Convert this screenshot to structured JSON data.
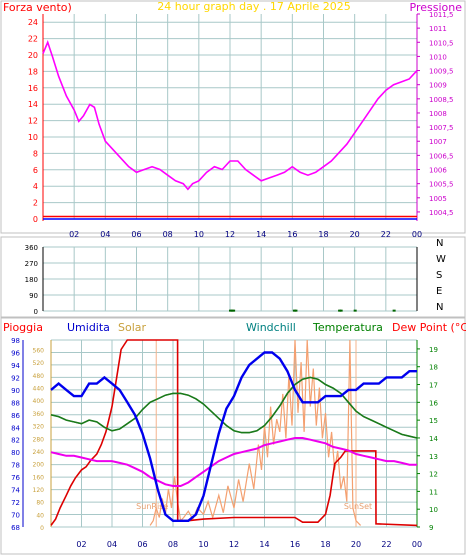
{
  "chart_data": [
    {
      "type": "line",
      "title": "24 hour graph day . 17 Aprile 2025",
      "left_label": "Forza vento)",
      "right_label": "Pressione",
      "x_ticks": [
        "02",
        "04",
        "06",
        "08",
        "10",
        "12",
        "14",
        "16",
        "18",
        "20",
        "22",
        "00"
      ],
      "left_ticks": [
        "0",
        "2",
        "4",
        "6",
        "8",
        "10",
        "12",
        "14",
        "16",
        "18",
        "20",
        "22",
        "24"
      ],
      "right_ticks": [
        "1004,5",
        "1005",
        "1005,5",
        "1006",
        "1006,5",
        "1007",
        "1007,5",
        "1008",
        "1008,5",
        "1009",
        "1009,5",
        "1010",
        "1010,5",
        "1011",
        "1011,5"
      ],
      "ylim_left": [
        0,
        25
      ],
      "ylim_right": [
        1004.25,
        1011.5
      ],
      "grid": true,
      "colors": {
        "pressure": "#ff00ff",
        "wind": "#0000ff",
        "gust": "#ff0000",
        "title": "#ffd700",
        "left_label": "#ff0000",
        "right_label": "#cc00cc"
      },
      "series": [
        {
          "key": "pressure",
          "axis": "right",
          "x": [
            0,
            0.3,
            0.6,
            1,
            1.5,
            2,
            2.3,
            2.6,
            3,
            3.3,
            3.6,
            4,
            4.5,
            5,
            5.5,
            6,
            6.5,
            7,
            7.5,
            8,
            8.5,
            9,
            9.3,
            9.6,
            10,
            10.5,
            11,
            11.5,
            12,
            12.5,
            13,
            13.5,
            14,
            14.5,
            15,
            15.5,
            16,
            16.5,
            17,
            17.5,
            18,
            18.5,
            19,
            19.5,
            20,
            20.5,
            21,
            21.5,
            22,
            22.5,
            23,
            23.5,
            24
          ],
          "values": [
            1010.1,
            1010.5,
            1010.0,
            1009.3,
            1008.6,
            1008.1,
            1007.7,
            1007.9,
            1008.3,
            1008.2,
            1007.6,
            1007.0,
            1006.7,
            1006.4,
            1006.1,
            1005.9,
            1006.0,
            1006.1,
            1006.0,
            1005.8,
            1005.6,
            1005.5,
            1005.3,
            1005.5,
            1005.6,
            1005.9,
            1006.1,
            1006.0,
            1006.3,
            1006.3,
            1006.0,
            1005.8,
            1005.6,
            1005.7,
            1005.8,
            1005.9,
            1006.1,
            1005.9,
            1005.8,
            1005.9,
            1006.1,
            1006.3,
            1006.6,
            1006.9,
            1007.3,
            1007.7,
            1008.1,
            1008.5,
            1008.8,
            1009.0,
            1009.1,
            1009.2,
            1009.5
          ]
        },
        {
          "key": "wind",
          "axis": "left",
          "x": [
            0,
            24
          ],
          "values": [
            0,
            0
          ]
        },
        {
          "key": "gust",
          "axis": "left",
          "x": [
            0,
            24
          ],
          "values": [
            0.3,
            0.3
          ]
        }
      ]
    },
    {
      "type": "scatter",
      "y_ticks": [
        "360",
        "270",
        "180",
        "90",
        "0"
      ],
      "direction_labels": [
        "N",
        "W",
        "S",
        "E",
        "N"
      ],
      "ylim": [
        0,
        360
      ],
      "grid": true,
      "series": [
        {
          "key": "direction",
          "color": "#006400",
          "x": [
            12.0,
            12.1,
            12.2,
            16.1,
            16.2,
            19.0,
            19.1,
            20.0,
            22.5
          ],
          "values": [
            2,
            2,
            2,
            2,
            2,
            2,
            2,
            2,
            2
          ]
        }
      ]
    },
    {
      "type": "line",
      "legend": [
        "Pioggia",
        "Umidita",
        "Solar",
        "Windchill",
        "Temperatura",
        "Dew Point (°C)"
      ],
      "legend_colors": {
        "Pioggia": "#ff0000",
        "Umidita": "#0000cc",
        "Solar": "#c8a03c",
        "Windchill": "#008080",
        "Temperatura": "#008000",
        "Dew Point (°C)": "#ff0000"
      },
      "humidity_ticks": [
        "68",
        "70",
        "72",
        "74",
        "76",
        "78",
        "80",
        "82",
        "84",
        "86",
        "88",
        "90",
        "92",
        "94",
        "96",
        "98"
      ],
      "solar_ticks": [
        "0",
        "40",
        "80",
        "120",
        "160",
        "200",
        "240",
        "280",
        "320",
        "360",
        "400",
        "440",
        "480",
        "520",
        "560"
      ],
      "temp_ticks": [
        "9",
        "10",
        "11",
        "12",
        "13",
        "14",
        "15",
        "16",
        "17",
        "18",
        "19"
      ],
      "x_ticks": [
        "02",
        "04",
        "06",
        "08",
        "10",
        "12",
        "14",
        "16",
        "18",
        "20",
        "22",
        "00"
      ],
      "sun_labels": [
        "SunRise",
        "SunSet"
      ],
      "sunrise_hour": 6.9,
      "sunset_hour": 20.0,
      "humidity_lim": [
        68,
        98
      ],
      "solar_lim": [
        0,
        590
      ],
      "temp_lim": [
        9,
        19.5
      ],
      "grid": true,
      "series": [
        {
          "key": "Umidita",
          "axis": "humidity",
          "x": [
            0,
            0.5,
            1,
            1.5,
            2,
            2.5,
            3,
            3.5,
            4,
            4.5,
            5,
            5.5,
            6,
            6.5,
            7,
            7.5,
            8,
            8.5,
            9,
            9.5,
            10,
            10.5,
            11,
            11.5,
            12,
            12.5,
            13,
            13.5,
            14,
            14.5,
            15,
            15.5,
            16,
            16.5,
            17,
            17.5,
            18,
            18.5,
            19,
            19.5,
            20,
            20.5,
            21,
            21.5,
            22,
            22.5,
            23,
            23.5,
            24
          ],
          "values": [
            90,
            91,
            90,
            89,
            89,
            91,
            91,
            92,
            91,
            90,
            88,
            86,
            83,
            79,
            74,
            70,
            69,
            69,
            69,
            70,
            73,
            78,
            83,
            87,
            89,
            92,
            94,
            95,
            96,
            96,
            95,
            93,
            90,
            88,
            88,
            88,
            89,
            89,
            89,
            90,
            90,
            91,
            91,
            91,
            92,
            92,
            92,
            93,
            93
          ]
        },
        {
          "key": "Temperatura",
          "axis": "temp",
          "x": [
            0,
            0.5,
            1,
            1.5,
            2,
            2.5,
            3,
            3.5,
            4,
            4.5,
            5,
            5.5,
            6,
            6.5,
            7,
            7.5,
            8,
            8.5,
            9,
            9.5,
            10,
            10.5,
            11,
            11.5,
            12,
            12.5,
            13,
            13.5,
            14,
            14.5,
            15,
            15.5,
            16,
            16.5,
            17,
            17.5,
            18,
            18.5,
            19,
            19.5,
            20,
            20.5,
            21,
            21.5,
            22,
            22.5,
            23,
            23.5,
            24
          ],
          "values": [
            15.3,
            15.2,
            15.0,
            14.9,
            14.8,
            15.0,
            14.9,
            14.6,
            14.4,
            14.5,
            14.8,
            15.1,
            15.6,
            16.0,
            16.2,
            16.4,
            16.5,
            16.5,
            16.4,
            16.2,
            15.9,
            15.5,
            15.1,
            14.7,
            14.4,
            14.3,
            14.3,
            14.4,
            14.7,
            15.2,
            15.8,
            16.5,
            17.0,
            17.3,
            17.4,
            17.3,
            17.0,
            16.8,
            16.5,
            16.0,
            15.5,
            15.2,
            15.0,
            14.8,
            14.6,
            14.4,
            14.2,
            14.1,
            14.0
          ]
        },
        {
          "key": "Dew Point (°C)",
          "axis": "temp",
          "x": [
            0,
            0.5,
            1,
            1.5,
            2,
            2.5,
            3,
            3.5,
            4,
            4.5,
            5,
            5.5,
            6,
            6.5,
            7,
            7.5,
            8,
            8.5,
            9,
            9.5,
            10,
            10.5,
            11,
            11.5,
            12,
            12.5,
            13,
            13.5,
            14,
            14.5,
            15,
            15.5,
            16,
            16.5,
            17,
            17.5,
            18,
            18.5,
            19,
            19.5,
            20,
            20.5,
            21,
            21.5,
            22,
            22.5,
            23,
            23.5,
            24
          ],
          "values": [
            13.2,
            13.1,
            13.0,
            13.0,
            12.9,
            12.8,
            12.7,
            12.7,
            12.7,
            12.6,
            12.5,
            12.3,
            12.1,
            11.8,
            11.6,
            11.4,
            11.3,
            11.3,
            11.5,
            11.8,
            12.1,
            12.4,
            12.7,
            12.9,
            13.1,
            13.2,
            13.3,
            13.4,
            13.6,
            13.7,
            13.8,
            13.9,
            14.0,
            14.0,
            13.9,
            13.8,
            13.7,
            13.5,
            13.4,
            13.3,
            13.1,
            13.0,
            12.9,
            12.8,
            12.7,
            12.7,
            12.6,
            12.5,
            12.5
          ]
        },
        {
          "key": "Windchill",
          "axis": "temp",
          "x": [
            0,
            0.5,
            1,
            1.5,
            2,
            2.5,
            3,
            3.5,
            4,
            4.5,
            5,
            5.5,
            6,
            6.5,
            7,
            7.5,
            8,
            8.5,
            9,
            9.5,
            10,
            10.5,
            11,
            11.5,
            12,
            12.5,
            13,
            13.5,
            14,
            14.5,
            15,
            15.5,
            16,
            16.5,
            17,
            17.5,
            18,
            18.5,
            19,
            19.5,
            20,
            20.5,
            21,
            21.5,
            22,
            22.5,
            23,
            23.5,
            24
          ],
          "values": [
            15.3,
            15.2,
            15.0,
            14.9,
            14.8,
            15.0,
            14.9,
            14.6,
            14.4,
            14.5,
            14.8,
            15.1,
            15.6,
            16.0,
            16.2,
            16.4,
            16.5,
            16.5,
            16.4,
            16.2,
            15.9,
            15.5,
            15.1,
            14.7,
            14.4,
            14.3,
            14.3,
            14.4,
            14.7,
            15.2,
            15.8,
            16.5,
            17.0,
            17.3,
            17.4,
            17.3,
            17.0,
            16.8,
            16.5,
            16.0,
            15.5,
            15.2,
            15.0,
            14.8,
            14.6,
            14.4,
            14.2,
            14.1,
            14.0
          ]
        },
        {
          "key": "Pioggia",
          "axis": "solar",
          "x": [
            0,
            0.3,
            0.6,
            1,
            1.3,
            1.6,
            2,
            2.3,
            2.6,
            3,
            3.3,
            3.6,
            4,
            4.3,
            4.6,
            5,
            6,
            7,
            8,
            8.3,
            8.31,
            9,
            10,
            12,
            14,
            16,
            16.5,
            17.5,
            18,
            18.3,
            18.6,
            19,
            19.3,
            20,
            20.5,
            21.3,
            21.31,
            24
          ],
          "values": [
            5,
            25,
            60,
            100,
            130,
            155,
            180,
            190,
            210,
            230,
            260,
            300,
            380,
            470,
            560,
            590,
            590,
            590,
            590,
            590,
            20,
            20,
            25,
            30,
            30,
            30,
            15,
            15,
            40,
            100,
            200,
            220,
            240,
            240,
            240,
            240,
            10,
            5
          ]
        },
        {
          "key": "Solar",
          "axis": "solar",
          "x": [
            6.5,
            6.7,
            6.9,
            7.1,
            7.3,
            7.5,
            7.7,
            7.9,
            8.1,
            8.3,
            8.5,
            8.7,
            9.0,
            9.3,
            9.6,
            10.0,
            10.3,
            10.6,
            11.0,
            11.3,
            11.6,
            12.0,
            12.3,
            12.6,
            13.0,
            13.3,
            13.6,
            13.8,
            14.0,
            14.2,
            14.4,
            14.6,
            14.8,
            15.0,
            15.2,
            15.4,
            15.6,
            15.8,
            16.0,
            16.2,
            16.4,
            16.6,
            16.8,
            17.0,
            17.2,
            17.4,
            17.6,
            17.8,
            18.0,
            18.2,
            18.4,
            18.6,
            18.8,
            19.0,
            19.2,
            19.4,
            19.6,
            19.8,
            20.0,
            20.3
          ],
          "values": [
            5,
            20,
            60,
            30,
            90,
            40,
            120,
            60,
            160,
            80,
            20,
            30,
            50,
            25,
            60,
            40,
            80,
            30,
            100,
            45,
            130,
            60,
            150,
            80,
            200,
            120,
            260,
            180,
            320,
            220,
            380,
            260,
            340,
            300,
            420,
            280,
            480,
            320,
            590,
            360,
            520,
            300,
            590,
            380,
            500,
            320,
            440,
            280,
            360,
            220,
            300,
            180,
            240,
            120,
            160,
            80,
            590,
            60,
            20,
            5
          ]
        }
      ]
    }
  ]
}
